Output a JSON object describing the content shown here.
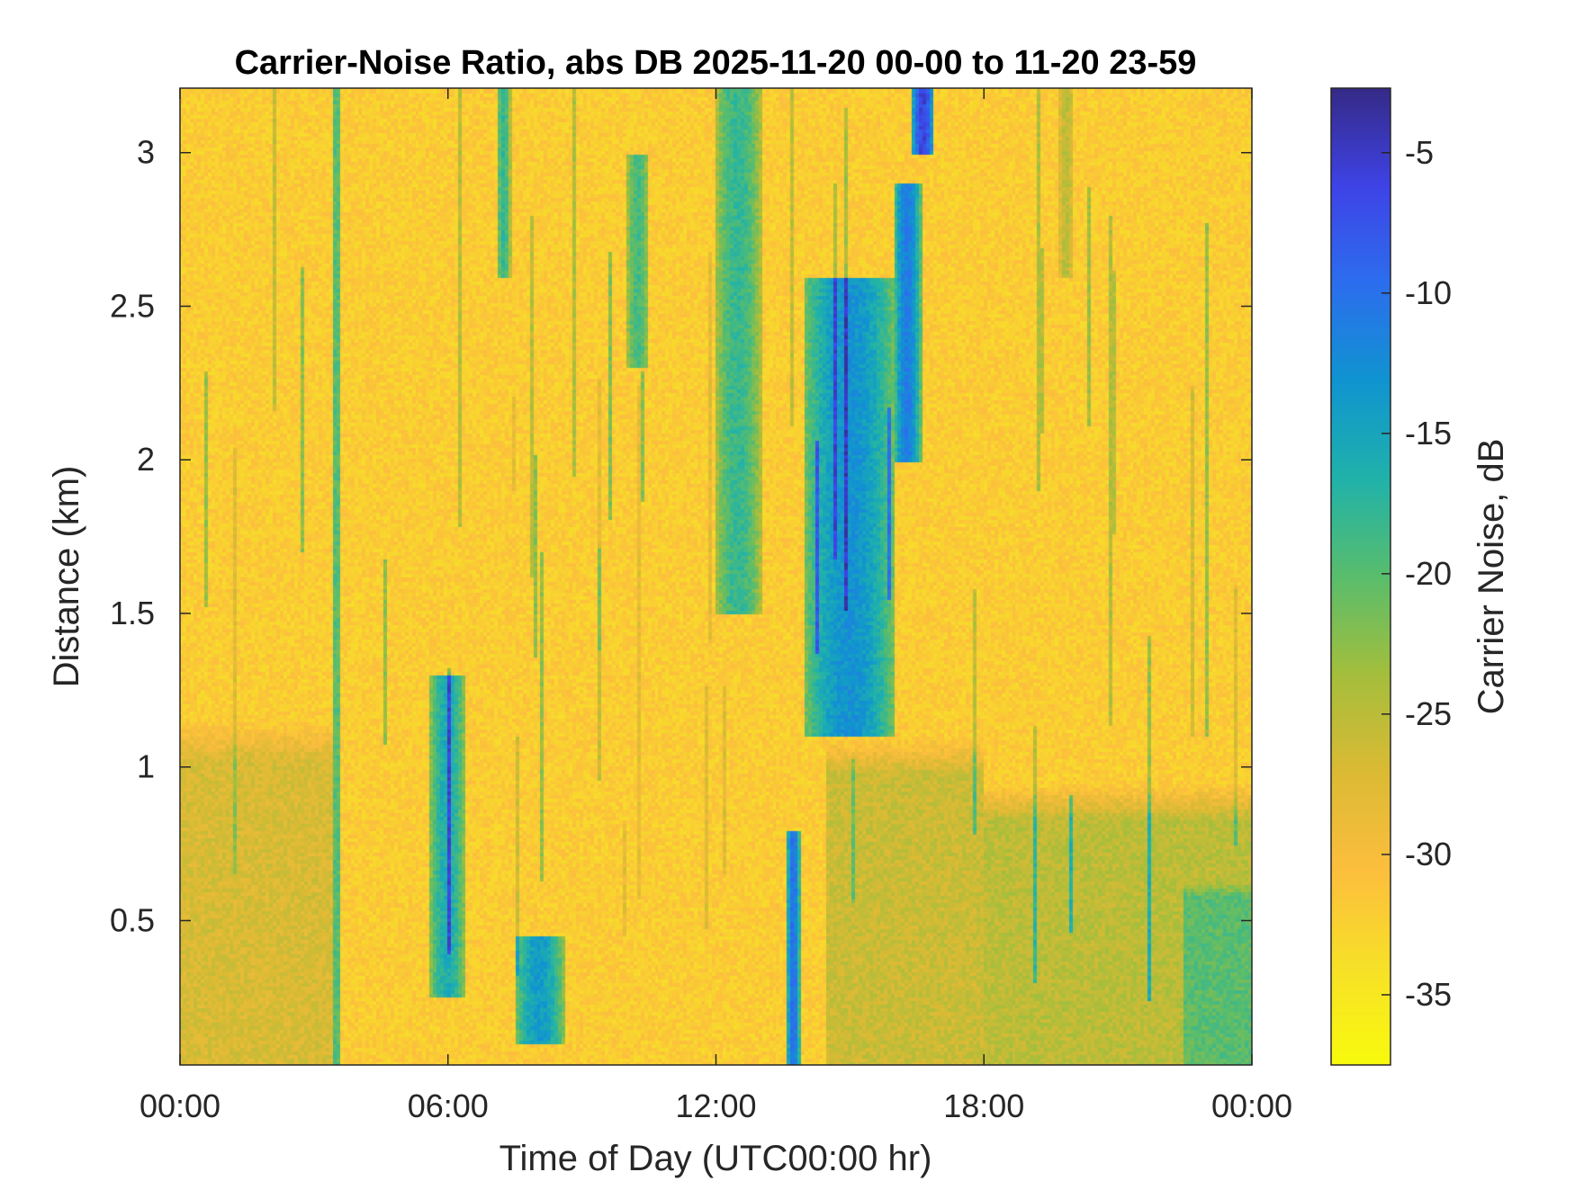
{
  "chart_data": {
    "type": "heatmap",
    "title": "Carrier-Noise Ratio, abs DB 2025-11-20 00-00 to 11-20 23-59",
    "xlabel": "Time of Day (UTC00:00 hr)",
    "ylabel": "Distance (km)",
    "colorbar_label": "Carrier Noise, dB",
    "x_ticks": [
      {
        "value": 0,
        "label": "00:00"
      },
      {
        "value": 6,
        "label": "06:00"
      },
      {
        "value": 12,
        "label": "12:00"
      },
      {
        "value": 18,
        "label": "18:00"
      },
      {
        "value": 24,
        "label": "00:00"
      }
    ],
    "y_ticks": [
      {
        "value": 0.5,
        "label": "0.5"
      },
      {
        "value": 1,
        "label": "1"
      },
      {
        "value": 1.5,
        "label": "1.5"
      },
      {
        "value": 2,
        "label": "2"
      },
      {
        "value": 2.5,
        "label": "2.5"
      },
      {
        "value": 3,
        "label": "3"
      }
    ],
    "colorbar_ticks": [
      {
        "value": -5,
        "label": "-5"
      },
      {
        "value": -10,
        "label": "-10"
      },
      {
        "value": -15,
        "label": "-15"
      },
      {
        "value": -20,
        "label": "-20"
      },
      {
        "value": -25,
        "label": "-25"
      },
      {
        "value": -30,
        "label": "-30"
      },
      {
        "value": -35,
        "label": "-35"
      }
    ],
    "xlim": [
      0,
      24
    ],
    "ylim": [
      0.03,
      3.21
    ],
    "clim": [
      -37.5,
      -2.7
    ],
    "colormap": "parula",
    "grid": false,
    "background_level_db": -32,
    "features": [
      {
        "kind": "boundary_layer",
        "x_start": 0,
        "x_end": 3.5,
        "y_top": 1.15,
        "level_db": -27
      },
      {
        "kind": "boundary_layer",
        "x_start": 14.5,
        "x_end": 18,
        "y_top": 1.1,
        "level_db": -26
      },
      {
        "kind": "boundary_layer",
        "x_start": 18,
        "x_end": 24,
        "y_top": 0.95,
        "level_db": -25
      },
      {
        "kind": "plume",
        "x_start": 22.5,
        "x_end": 24,
        "y_top": 0.7,
        "level_db": -20
      },
      {
        "kind": "streak",
        "x": 3.5,
        "y_low": 0.03,
        "y_high": 3.21,
        "level_db": -20
      },
      {
        "kind": "band",
        "x_start": 5.6,
        "x_end": 6.4,
        "y_low": 0.25,
        "y_high": 1.3,
        "level_db": -16
      },
      {
        "kind": "band",
        "x_start": 7.5,
        "x_end": 8.6,
        "y_low": 0.1,
        "y_high": 0.45,
        "level_db": -14
      },
      {
        "kind": "band",
        "x_start": 7.1,
        "x_end": 7.4,
        "y_low": 2.6,
        "y_high": 3.21,
        "level_db": -18
      },
      {
        "kind": "band",
        "x_start": 10.0,
        "x_end": 10.5,
        "y_low": 2.3,
        "y_high": 3.0,
        "level_db": -19
      },
      {
        "kind": "band",
        "x_start": 12.0,
        "x_end": 13.0,
        "y_low": 1.5,
        "y_high": 3.21,
        "level_db": -18
      },
      {
        "kind": "band",
        "x_start": 13.6,
        "x_end": 13.9,
        "y_low": 0.03,
        "y_high": 0.8,
        "level_db": -10
      },
      {
        "kind": "band",
        "x_start": 14.0,
        "x_end": 16.0,
        "y_low": 1.1,
        "y_high": 2.6,
        "level_db": -13
      },
      {
        "kind": "band",
        "x_start": 16.0,
        "x_end": 16.6,
        "y_low": 2.0,
        "y_high": 2.9,
        "level_db": -11
      },
      {
        "kind": "band",
        "x_start": 16.4,
        "x_end": 16.9,
        "y_low": 3.0,
        "y_high": 3.21,
        "level_db": -6
      },
      {
        "kind": "band",
        "x_start": 19.7,
        "x_end": 20.0,
        "y_low": 2.6,
        "y_high": 3.21,
        "level_db": -25
      }
    ]
  }
}
